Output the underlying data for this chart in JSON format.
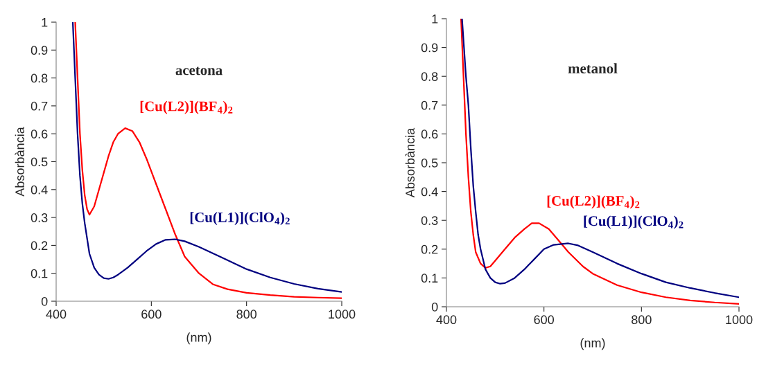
{
  "chart_data": [
    {
      "type": "line",
      "title": "acetona",
      "xlabel": "(nm)",
      "ylabel": "Absorbància",
      "xlim": [
        400,
        1000
      ],
      "ylim": [
        0,
        1
      ],
      "xticks": [
        400,
        600,
        800,
        1000
      ],
      "yticks": [
        0,
        0.1,
        0.2,
        0.3,
        0.4,
        0.5,
        0.6,
        0.7,
        0.8,
        0.9,
        1
      ],
      "grid": false,
      "legend": false,
      "series": [
        {
          "name": "[Cu(L2)](BF$_{4}$)$_{2}$",
          "color": "#ff0000",
          "x": [
            440,
            445,
            450,
            455,
            460,
            465,
            470,
            480,
            490,
            500,
            510,
            520,
            530,
            545,
            560,
            575,
            590,
            610,
            630,
            650,
            670,
            700,
            730,
            760,
            800,
            850,
            900,
            950,
            1000
          ],
          "values": [
            1.0,
            0.8,
            0.6,
            0.47,
            0.38,
            0.33,
            0.31,
            0.34,
            0.4,
            0.46,
            0.52,
            0.57,
            0.6,
            0.62,
            0.61,
            0.57,
            0.51,
            0.42,
            0.33,
            0.24,
            0.16,
            0.1,
            0.06,
            0.043,
            0.03,
            0.022,
            0.016,
            0.013,
            0.011
          ]
        },
        {
          "name": "[Cu(L1)](ClO$_{4}$)$_{2}$",
          "color": "#000080",
          "x": [
            435,
            440,
            445,
            450,
            455,
            460,
            470,
            480,
            490,
            500,
            510,
            520,
            530,
            550,
            570,
            590,
            610,
            630,
            650,
            670,
            700,
            750,
            800,
            850,
            900,
            950,
            1000
          ],
          "values": [
            1.0,
            0.8,
            0.6,
            0.45,
            0.35,
            0.28,
            0.17,
            0.12,
            0.095,
            0.083,
            0.08,
            0.085,
            0.095,
            0.12,
            0.15,
            0.18,
            0.205,
            0.22,
            0.222,
            0.215,
            0.195,
            0.155,
            0.115,
            0.085,
            0.062,
            0.045,
            0.033
          ]
        }
      ]
    },
    {
      "type": "line",
      "title": "metanol",
      "xlabel": "(nm)",
      "ylabel": "Absorbància",
      "xlim": [
        400,
        1000
      ],
      "ylim": [
        0,
        1
      ],
      "xticks": [
        400,
        600,
        800,
        1000
      ],
      "yticks": [
        0,
        0.1,
        0.2,
        0.3,
        0.4,
        0.5,
        0.6,
        0.7,
        0.8,
        0.9,
        1
      ],
      "grid": false,
      "legend": false,
      "series": [
        {
          "name": "[Cu(L2)](BF$_{4}$)$_{2}$",
          "color": "#ff0000",
          "x": [
            430,
            435,
            440,
            445,
            450,
            455,
            460,
            470,
            480,
            490,
            500,
            520,
            540,
            560,
            575,
            590,
            610,
            630,
            650,
            680,
            700,
            750,
            800,
            850,
            900,
            950,
            1000
          ],
          "values": [
            1.0,
            0.8,
            0.6,
            0.45,
            0.33,
            0.25,
            0.19,
            0.15,
            0.135,
            0.14,
            0.16,
            0.2,
            0.24,
            0.27,
            0.29,
            0.29,
            0.27,
            0.23,
            0.19,
            0.14,
            0.115,
            0.075,
            0.05,
            0.033,
            0.022,
            0.015,
            0.01
          ]
        },
        {
          "name": "[Cu(L1)](ClO$_{4}$)$_{2}$",
          "color": "#000080",
          "x": [
            432,
            440,
            445,
            450,
            455,
            460,
            465,
            470,
            480,
            490,
            500,
            510,
            520,
            540,
            560,
            580,
            600,
            620,
            650,
            670,
            700,
            750,
            800,
            850,
            900,
            950,
            1000
          ],
          "values": [
            1.0,
            0.8,
            0.7,
            0.55,
            0.42,
            0.33,
            0.25,
            0.2,
            0.13,
            0.1,
            0.085,
            0.08,
            0.082,
            0.1,
            0.13,
            0.165,
            0.2,
            0.215,
            0.22,
            0.213,
            0.19,
            0.15,
            0.115,
            0.085,
            0.065,
            0.048,
            0.033
          ]
        }
      ]
    }
  ]
}
